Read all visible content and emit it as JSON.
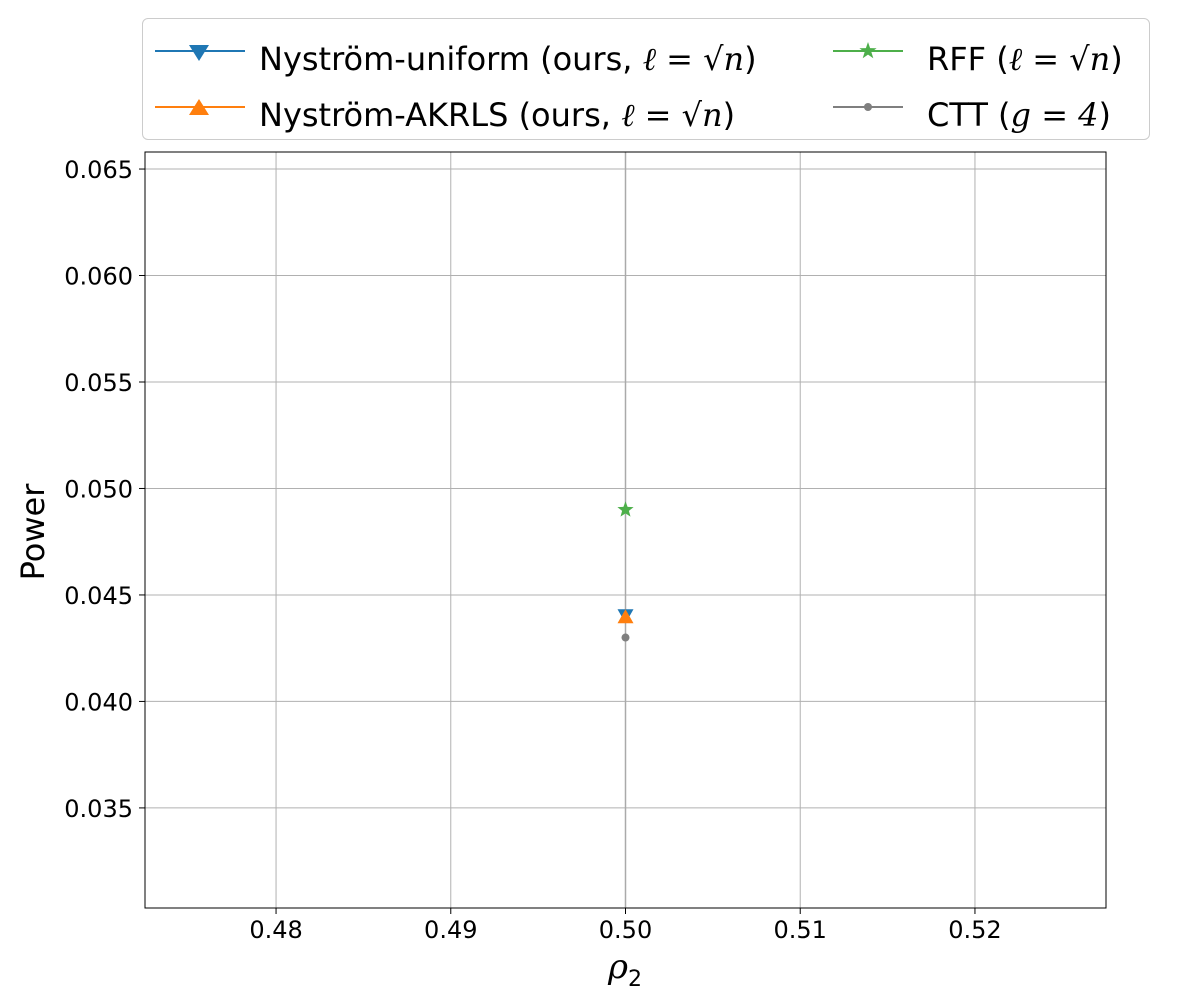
{
  "chart_data": {
    "type": "scatter",
    "xlabel": "ρ2",
    "ylabel": "Power",
    "xlim": [
      0.4725,
      0.5275
    ],
    "ylim": [
      0.0303,
      0.0658
    ],
    "xticks": [
      0.48,
      0.49,
      0.5,
      0.51,
      0.52
    ],
    "xtick_labels": [
      "0.48",
      "0.49",
      "0.50",
      "0.51",
      "0.52"
    ],
    "yticks": [
      0.035,
      0.04,
      0.045,
      0.05,
      0.055,
      0.06,
      0.065
    ],
    "ytick_labels": [
      "0.035",
      "0.040",
      "0.045",
      "0.050",
      "0.055",
      "0.060",
      "0.065"
    ],
    "grid": true,
    "legend_position": "top",
    "error_bar": {
      "x": 0.5,
      "low": 0.0303,
      "high": 0.0658,
      "color": "#aaaaaa"
    },
    "series": [
      {
        "name": "Nyström-uniform (ours, ℓ = √n)",
        "x": [
          0.5
        ],
        "y": [
          0.044
        ],
        "color": "#1f77b4",
        "marker": "triangle-down"
      },
      {
        "name": "Nyström-AKRLS (ours, ℓ = √n)",
        "x": [
          0.5
        ],
        "y": [
          0.044
        ],
        "color": "#ff7f0e",
        "marker": "triangle-up"
      },
      {
        "name": "RFF  (ℓ = √n)",
        "x": [
          0.5
        ],
        "y": [
          0.049
        ],
        "color": "#4daf4a",
        "marker": "star"
      },
      {
        "name": "CTT  (g = 4)",
        "x": [
          0.5
        ],
        "y": [
          0.043
        ],
        "color": "#7f7f7f",
        "marker": "circle"
      }
    ]
  },
  "legend": {
    "entries": [
      {
        "label": "Nyström-uniform (ours, ",
        "math": "ℓ = √n",
        "suffix": ")"
      },
      {
        "label": "Nyström-AKRLS (ours, ",
        "math": "ℓ = √n",
        "suffix": ")"
      },
      {
        "label": "RFF  (",
        "math": "ℓ = √n",
        "suffix": ")"
      },
      {
        "label": "CTT  (",
        "math": "g = 4",
        "suffix": ")"
      }
    ]
  }
}
